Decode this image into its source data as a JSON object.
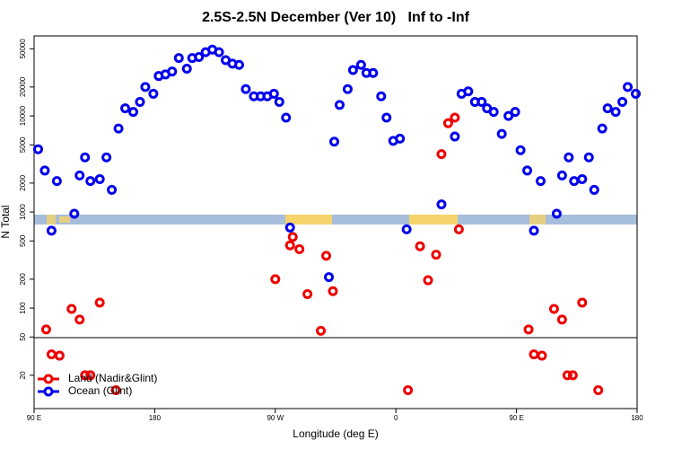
{
  "chart_data": {
    "type": "scatter",
    "title": "2.5S-2.5N December (Ver 10)   Inf to -Inf",
    "x_label": "Longitude (deg E)",
    "y_label": "N Total",
    "log_y": true,
    "xlim": [
      90,
      540
    ],
    "ylim": [
      9,
      68000
    ],
    "xticks": [
      {
        "value": 90,
        "label": "90 E"
      },
      {
        "value": 180,
        "label": "180"
      },
      {
        "value": 270,
        "label": "90 W"
      },
      {
        "value": 360,
        "label": "0"
      },
      {
        "value": 450,
        "label": "90 E"
      },
      {
        "value": 540,
        "label": "180"
      }
    ],
    "yticks": [
      20,
      50,
      100,
      200,
      500,
      1000,
      2000,
      5000,
      10000,
      20000,
      50000
    ],
    "legend": "bottom-left",
    "series": [
      {
        "name": "Land (Nadir&Glint)",
        "color": "#ee0000",
        "x": [
          99,
          103,
          109,
          118,
          124,
          128,
          132,
          139,
          151,
          270,
          281,
          283,
          288,
          294,
          304,
          308,
          313,
          369,
          378,
          384,
          390,
          394,
          399,
          404,
          407,
          459,
          463,
          469,
          478,
          484,
          488,
          492,
          499,
          511
        ],
        "values": [
          60,
          33,
          32,
          98,
          76,
          20,
          20,
          114,
          14,
          200,
          450,
          550,
          410,
          140,
          58,
          350,
          150,
          14,
          440,
          195,
          360,
          4000,
          8400,
          9600,
          660,
          60,
          33,
          32,
          98,
          76,
          20,
          20,
          114,
          14
        ]
      },
      {
        "name": "Ocean (Glint)",
        "color": "#0000ee",
        "x": [
          93,
          98,
          103,
          107,
          120,
          124,
          128,
          132,
          139,
          144,
          148,
          153,
          158,
          164,
          169,
          173,
          179,
          183,
          188,
          193,
          198,
          204,
          208,
          213,
          218,
          223,
          228,
          233,
          238,
          243,
          248,
          254,
          259,
          264,
          269,
          273,
          278,
          281,
          310,
          314,
          318,
          324,
          328,
          334,
          338,
          343,
          349,
          353,
          358,
          363,
          368,
          394,
          404,
          409,
          414,
          419,
          424,
          428,
          433,
          439,
          444,
          449,
          453,
          458,
          463,
          468,
          480,
          484,
          489,
          493,
          499,
          504,
          508,
          514,
          518,
          524,
          529,
          533,
          539
        ],
        "values": [
          4500,
          2700,
          640,
          2100,
          960,
          2400,
          3700,
          2100,
          2200,
          3700,
          1700,
          7400,
          12000,
          11000,
          14000,
          20000,
          17000,
          26000,
          27000,
          29000,
          40000,
          31000,
          40000,
          41000,
          46000,
          49000,
          46000,
          38000,
          35000,
          34000,
          19000,
          16000,
          16000,
          16000,
          17000,
          14000,
          9600,
          690,
          210,
          5400,
          13000,
          19000,
          30000,
          34000,
          28000,
          28000,
          16000,
          9600,
          5500,
          5800,
          660,
          1200,
          6100,
          17000,
          18000,
          14000,
          14000,
          12000,
          11000,
          6500,
          10000,
          11000,
          4400,
          2700,
          640,
          2100,
          960,
          2400,
          3700,
          2100,
          2200,
          3700,
          1700,
          7400,
          12000,
          11000,
          14000,
          20000,
          17000
        ]
      }
    ]
  }
}
